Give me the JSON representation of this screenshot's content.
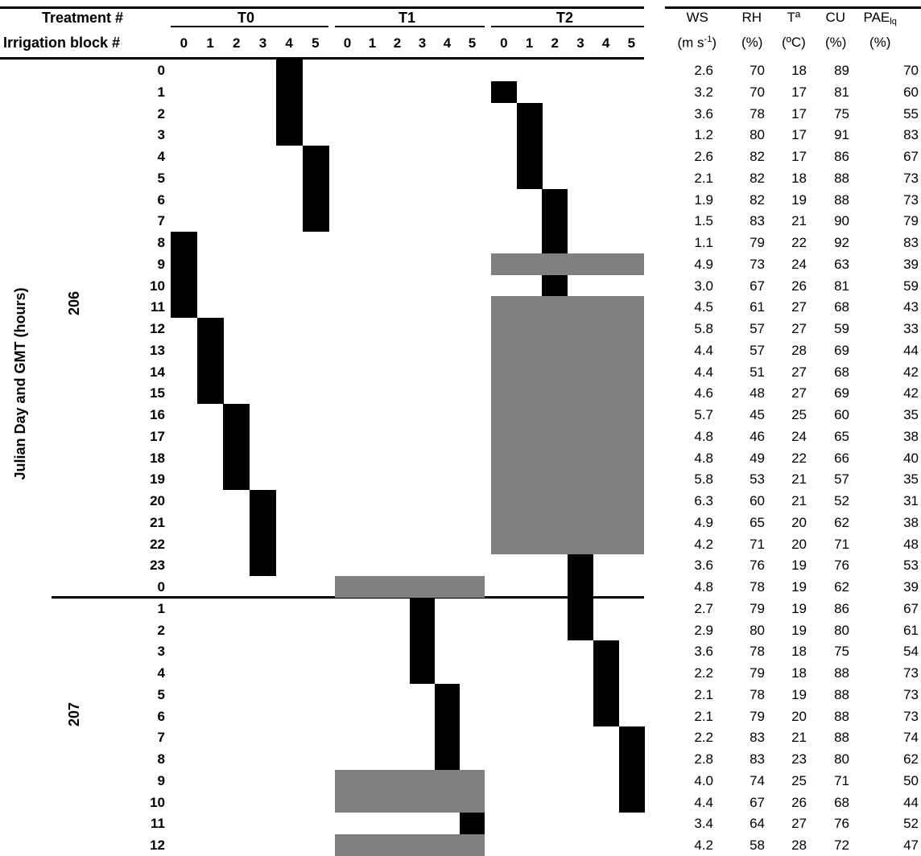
{
  "headers": {
    "treatment_label": "Treatment #",
    "block_label": "Irrigation block #",
    "treatments": [
      "T0",
      "T1",
      "T2"
    ],
    "blocks": [
      "0",
      "1",
      "2",
      "3",
      "4",
      "5"
    ],
    "y_axis_label": "Julian Day and GMT (hours)",
    "days": [
      "206",
      "207"
    ]
  },
  "met_headers": [
    {
      "top": "WS",
      "bottom_pre": "(m s",
      "bottom_sup": "-1",
      "bottom_post": ")"
    },
    {
      "top": "RH",
      "bottom": "(%)"
    },
    {
      "top": "Tª",
      "bottom": "(ºC)"
    },
    {
      "top": "CU",
      "bottom": "(%)"
    },
    {
      "top_pre": "PAE",
      "top_sub": "lq",
      "bottom": "(%)"
    }
  ],
  "rows": [
    {
      "day": "206",
      "hour": "0",
      "WS": "2.6",
      "RH": "70",
      "T": "18",
      "CU": "89",
      "PAE": "70"
    },
    {
      "day": "206",
      "hour": "1",
      "WS": "3.2",
      "RH": "70",
      "T": "17",
      "CU": "81",
      "PAE": "60"
    },
    {
      "day": "206",
      "hour": "2",
      "WS": "3.6",
      "RH": "78",
      "T": "17",
      "CU": "75",
      "PAE": "55"
    },
    {
      "day": "206",
      "hour": "3",
      "WS": "1.2",
      "RH": "80",
      "T": "17",
      "CU": "91",
      "PAE": "83"
    },
    {
      "day": "206",
      "hour": "4",
      "WS": "2.6",
      "RH": "82",
      "T": "17",
      "CU": "86",
      "PAE": "67"
    },
    {
      "day": "206",
      "hour": "5",
      "WS": "2.1",
      "RH": "82",
      "T": "18",
      "CU": "88",
      "PAE": "73"
    },
    {
      "day": "206",
      "hour": "6",
      "WS": "1.9",
      "RH": "82",
      "T": "19",
      "CU": "88",
      "PAE": "73"
    },
    {
      "day": "206",
      "hour": "7",
      "WS": "1.5",
      "RH": "83",
      "T": "21",
      "CU": "90",
      "PAE": "79"
    },
    {
      "day": "206",
      "hour": "8",
      "WS": "1.1",
      "RH": "79",
      "T": "22",
      "CU": "92",
      "PAE": "83"
    },
    {
      "day": "206",
      "hour": "9",
      "WS": "4.9",
      "RH": "73",
      "T": "24",
      "CU": "63",
      "PAE": "39"
    },
    {
      "day": "206",
      "hour": "10",
      "WS": "3.0",
      "RH": "67",
      "T": "26",
      "CU": "81",
      "PAE": "59"
    },
    {
      "day": "206",
      "hour": "11",
      "WS": "4.5",
      "RH": "61",
      "T": "27",
      "CU": "68",
      "PAE": "43"
    },
    {
      "day": "206",
      "hour": "12",
      "WS": "5.8",
      "RH": "57",
      "T": "27",
      "CU": "59",
      "PAE": "33"
    },
    {
      "day": "206",
      "hour": "13",
      "WS": "4.4",
      "RH": "57",
      "T": "28",
      "CU": "69",
      "PAE": "44"
    },
    {
      "day": "206",
      "hour": "14",
      "WS": "4.4",
      "RH": "51",
      "T": "27",
      "CU": "68",
      "PAE": "42"
    },
    {
      "day": "206",
      "hour": "15",
      "WS": "4.6",
      "RH": "48",
      "T": "27",
      "CU": "69",
      "PAE": "42"
    },
    {
      "day": "206",
      "hour": "16",
      "WS": "5.7",
      "RH": "45",
      "T": "25",
      "CU": "60",
      "PAE": "35"
    },
    {
      "day": "206",
      "hour": "17",
      "WS": "4.8",
      "RH": "46",
      "T": "24",
      "CU": "65",
      "PAE": "38"
    },
    {
      "day": "206",
      "hour": "18",
      "WS": "4.8",
      "RH": "49",
      "T": "22",
      "CU": "66",
      "PAE": "40"
    },
    {
      "day": "206",
      "hour": "19",
      "WS": "5.8",
      "RH": "53",
      "T": "21",
      "CU": "57",
      "PAE": "35"
    },
    {
      "day": "206",
      "hour": "20",
      "WS": "6.3",
      "RH": "60",
      "T": "21",
      "CU": "52",
      "PAE": "31"
    },
    {
      "day": "206",
      "hour": "21",
      "WS": "4.9",
      "RH": "65",
      "T": "20",
      "CU": "62",
      "PAE": "38"
    },
    {
      "day": "206",
      "hour": "22",
      "WS": "4.2",
      "RH": "71",
      "T": "20",
      "CU": "71",
      "PAE": "48"
    },
    {
      "day": "206",
      "hour": "23",
      "WS": "3.6",
      "RH": "76",
      "T": "19",
      "CU": "76",
      "PAE": "53"
    },
    {
      "day": "207",
      "hour": "0",
      "WS": "4.8",
      "RH": "78",
      "T": "19",
      "CU": "62",
      "PAE": "39"
    },
    {
      "day": "207",
      "hour": "1",
      "WS": "2.7",
      "RH": "79",
      "T": "19",
      "CU": "86",
      "PAE": "67"
    },
    {
      "day": "207",
      "hour": "2",
      "WS": "2.9",
      "RH": "80",
      "T": "19",
      "CU": "80",
      "PAE": "61"
    },
    {
      "day": "207",
      "hour": "3",
      "WS": "3.6",
      "RH": "78",
      "T": "18",
      "CU": "75",
      "PAE": "54"
    },
    {
      "day": "207",
      "hour": "4",
      "WS": "2.2",
      "RH": "79",
      "T": "18",
      "CU": "88",
      "PAE": "73"
    },
    {
      "day": "207",
      "hour": "5",
      "WS": "2.1",
      "RH": "78",
      "T": "19",
      "CU": "88",
      "PAE": "73"
    },
    {
      "day": "207",
      "hour": "6",
      "WS": "2.1",
      "RH": "79",
      "T": "20",
      "CU": "88",
      "PAE": "73"
    },
    {
      "day": "207",
      "hour": "7",
      "WS": "2.2",
      "RH": "83",
      "T": "21",
      "CU": "88",
      "PAE": "74"
    },
    {
      "day": "207",
      "hour": "8",
      "WS": "2.8",
      "RH": "83",
      "T": "23",
      "CU": "80",
      "PAE": "62"
    },
    {
      "day": "207",
      "hour": "9",
      "WS": "4.0",
      "RH": "74",
      "T": "25",
      "CU": "71",
      "PAE": "50"
    },
    {
      "day": "207",
      "hour": "10",
      "WS": "4.4",
      "RH": "67",
      "T": "26",
      "CU": "68",
      "PAE": "44"
    },
    {
      "day": "207",
      "hour": "11",
      "WS": "3.4",
      "RH": "64",
      "T": "27",
      "CU": "76",
      "PAE": "52"
    },
    {
      "day": "207",
      "hour": "12",
      "WS": "4.2",
      "RH": "58",
      "T": "28",
      "CU": "72",
      "PAE": "47"
    }
  ],
  "schedule": {
    "irrigation_color": "#000000",
    "skipped_color": "#808080",
    "irrigation_events": [
      {
        "treatment": "T0",
        "block": 4,
        "start_row": 0,
        "end_row": 3
      },
      {
        "treatment": "T0",
        "block": 5,
        "start_row": 4,
        "end_row": 7
      },
      {
        "treatment": "T0",
        "block": 0,
        "start_row": 8,
        "end_row": 11
      },
      {
        "treatment": "T0",
        "block": 1,
        "start_row": 12,
        "end_row": 15
      },
      {
        "treatment": "T0",
        "block": 2,
        "start_row": 16,
        "end_row": 19
      },
      {
        "treatment": "T0",
        "block": 3,
        "start_row": 20,
        "end_row": 23
      },
      {
        "treatment": "T1",
        "block": 3,
        "start_row": 25,
        "end_row": 28
      },
      {
        "treatment": "T1",
        "block": 4,
        "start_row": 29,
        "end_row": 32
      },
      {
        "treatment": "T1",
        "block": 5,
        "start_row": 35,
        "end_row": 35
      },
      {
        "treatment": "T2",
        "block": 0,
        "start_row": 1,
        "end_row": 1
      },
      {
        "treatment": "T2",
        "block": 1,
        "start_row": 2,
        "end_row": 5
      },
      {
        "treatment": "T2",
        "block": 2,
        "start_row": 6,
        "end_row": 8
      },
      {
        "treatment": "T2",
        "block": 2,
        "start_row": 10,
        "end_row": 10
      },
      {
        "treatment": "T2",
        "block": 3,
        "start_row": 23,
        "end_row": 26
      },
      {
        "treatment": "T2",
        "block": 4,
        "start_row": 27,
        "end_row": 30
      },
      {
        "treatment": "T2",
        "block": 5,
        "start_row": 31,
        "end_row": 34
      }
    ],
    "skipped_events": [
      {
        "treatment": "T2",
        "start_row": 9,
        "end_row": 9
      },
      {
        "treatment": "T2",
        "start_row": 11,
        "end_row": 22
      },
      {
        "treatment": "T1",
        "start_row": 24,
        "end_row": 24
      },
      {
        "treatment": "T1",
        "start_row": 33,
        "end_row": 34
      },
      {
        "treatment": "T1",
        "start_row": 36,
        "end_row": 36
      }
    ]
  }
}
